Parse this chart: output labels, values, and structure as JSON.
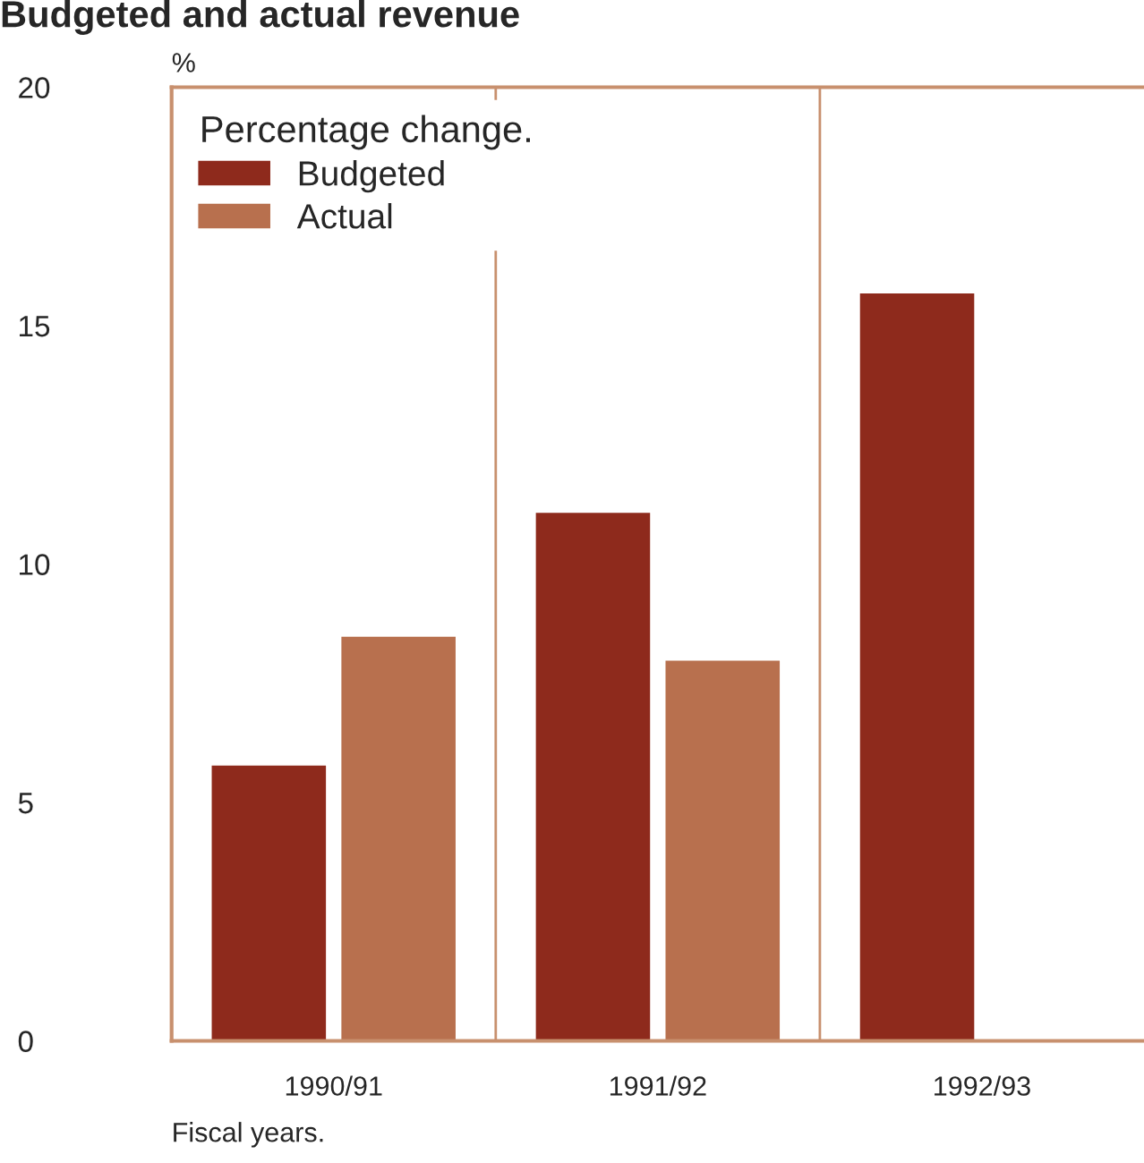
{
  "chart_data": {
    "type": "bar",
    "title": "Budgeted and actual revenue",
    "ylabel": "%",
    "xlabel": "Fiscal years.",
    "legend_title": "Percentage change.",
    "categories": [
      "1990/91",
      "1991/92",
      "1992/93"
    ],
    "series": [
      {
        "name": "Budgeted",
        "color": "#8e2a1c",
        "values": [
          5.8,
          11.1,
          15.7
        ]
      },
      {
        "name": "Actual",
        "color": "#b8704e",
        "values": [
          8.5,
          8.0,
          null
        ]
      }
    ],
    "ylim": [
      0,
      20
    ],
    "yticks": [
      0,
      5,
      10,
      15,
      20
    ],
    "grid": false,
    "legend": "top left"
  }
}
